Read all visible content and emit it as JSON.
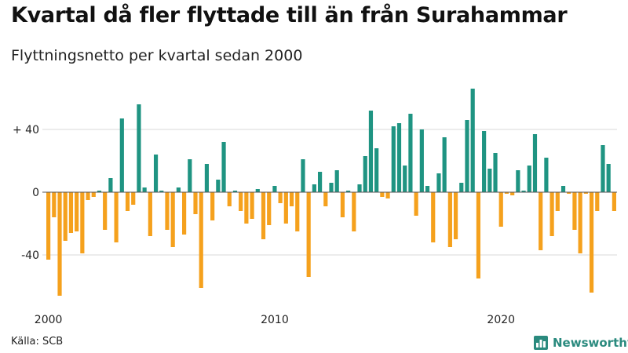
{
  "title": "Kvartal då fler flyttade till än från Surahammar",
  "subtitle": "Flyttningsnetto per kvartal sedan 2000",
  "source": "Källa: SCB",
  "brand": {
    "name": "Newsworthy",
    "icon": "bar-chart-logo-icon",
    "color": "#2a8a7e"
  },
  "colors": {
    "positive": "#1f9482",
    "negative": "#f5a11d",
    "grid": "#d9d9d9",
    "zero": "#555555"
  },
  "chart_data": {
    "type": "bar",
    "title": "Kvartal då fler flyttade till än från Surahammar",
    "subtitle": "Flyttningsnetto per kvartal sedan 2000",
    "xlabel": "",
    "ylabel": "",
    "ylim": [
      -70,
      68
    ],
    "yticks": [
      {
        "value": 40,
        "label": "+ 40"
      },
      {
        "value": 0,
        "label": "0"
      },
      {
        "value": -40,
        "label": "-40"
      }
    ],
    "xticks": [
      {
        "index": 0,
        "label": "2000"
      },
      {
        "index": 40,
        "label": "2010"
      },
      {
        "index": 80,
        "label": "2020"
      }
    ],
    "start": "2000 K1",
    "values": [
      -43,
      -16,
      -66,
      -31,
      -26,
      -25,
      -39,
      -5,
      -3,
      1,
      -24,
      9,
      -32,
      47,
      -12,
      -8,
      56,
      3,
      -28,
      24,
      1,
      -24,
      -35,
      3,
      -27,
      21,
      -14,
      -61,
      18,
      -18,
      8,
      32,
      -9,
      1,
      -12,
      -20,
      -17,
      2,
      -30,
      -21,
      4,
      -7,
      -20,
      -9,
      -25,
      21,
      -54,
      5,
      13,
      -9,
      6,
      14,
      -16,
      1,
      -25,
      5,
      23,
      52,
      28,
      -3,
      -4,
      42,
      44,
      17,
      50,
      -15,
      40,
      4,
      -32,
      12,
      35,
      -35,
      -30,
      6,
      46,
      66,
      -55,
      39,
      15,
      25,
      -22,
      -1,
      -2,
      14,
      1,
      17,
      37,
      -37,
      22,
      -28,
      -12,
      4,
      -1,
      -24,
      -39,
      -1,
      -64,
      -12,
      30,
      18,
      -12
    ]
  }
}
